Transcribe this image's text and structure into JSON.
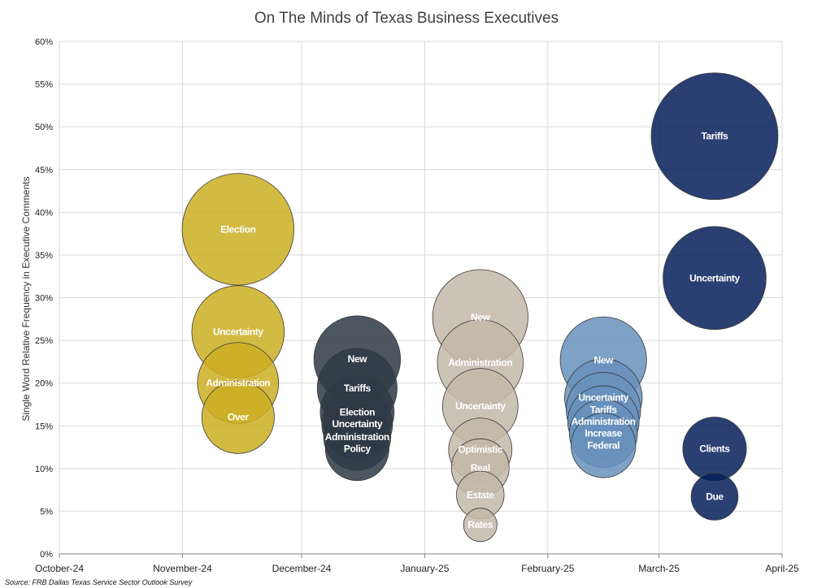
{
  "chart_data": {
    "type": "bubble",
    "title": "On The Minds of Texas Business Executives",
    "ylabel": "Single Word Relative Frequency in Executive Comments",
    "xlabel": "",
    "x_tick_labels": [
      "October-24",
      "November-24",
      "December-24",
      "January-25",
      "February-25",
      "March-25",
      "April-25"
    ],
    "x_range": [
      "2024-10-01",
      "2025-04-01"
    ],
    "ylim": [
      0,
      60
    ],
    "y_tick_values": [
      0,
      5,
      10,
      15,
      20,
      25,
      30,
      35,
      40,
      45,
      50,
      55,
      60
    ],
    "y_tick_suffix": "%",
    "grid": true,
    "legend": "none",
    "series": [
      {
        "month": "November-24",
        "x": "2024-11-15",
        "color": "#CBAE22",
        "points": [
          {
            "label": "Election",
            "y": 38,
            "size": 38
          },
          {
            "label": "Uncertainty",
            "y": 26,
            "size": 26
          },
          {
            "label": "Administration",
            "y": 20,
            "size": 20
          },
          {
            "label": "Over",
            "y": 16,
            "size": 16
          }
        ]
      },
      {
        "month": "December-24",
        "x": "2024-12-15",
        "color": "#2E3A46",
        "points": [
          {
            "label": "New",
            "y": 22.8,
            "size": 22.8
          },
          {
            "label": "Tariffs",
            "y": 19.4,
            "size": 19.4
          },
          {
            "label": "Election",
            "y": 16.6,
            "size": 16.6
          },
          {
            "label": "Uncertainty",
            "y": 15.2,
            "size": 15.2
          },
          {
            "label": "Administration",
            "y": 13.7,
            "size": 13.7
          },
          {
            "label": "Policy",
            "y": 12.3,
            "size": 12.3
          }
        ]
      },
      {
        "month": "January-25",
        "x": "2025-01-15",
        "color": "#C3B7A8",
        "points": [
          {
            "label": "New",
            "y": 27.7,
            "size": 27.7
          },
          {
            "label": "Administration",
            "y": 22.4,
            "size": 22.4
          },
          {
            "label": "Uncertainty",
            "y": 17.3,
            "size": 17.3
          },
          {
            "label": "Optimistic",
            "y": 12.2,
            "size": 12.2
          },
          {
            "label": "Real",
            "y": 10.1,
            "size": 10.1
          },
          {
            "label": "Estate",
            "y": 6.9,
            "size": 6.9
          },
          {
            "label": "Rates",
            "y": 3.4,
            "size": 3.4
          }
        ]
      },
      {
        "month": "February-25",
        "x": "2025-02-15",
        "color": "#6790BC",
        "points": [
          {
            "label": "New",
            "y": 22.7,
            "size": 22.7
          },
          {
            "label": "Uncertainty",
            "y": 18.3,
            "size": 18.3
          },
          {
            "label": "Tariffs",
            "y": 16.9,
            "size": 16.9
          },
          {
            "label": "Administration",
            "y": 15.5,
            "size": 15.5
          },
          {
            "label": "Increase",
            "y": 14.1,
            "size": 14.1
          },
          {
            "label": "Federal",
            "y": 12.7,
            "size": 12.7
          }
        ]
      },
      {
        "month": "March-25",
        "x": "2025-03-15",
        "color": "#051F5A",
        "points": [
          {
            "label": "Tariffs",
            "y": 48.9,
            "size": 48.9
          },
          {
            "label": "Uncertainty",
            "y": 32.3,
            "size": 32.3
          },
          {
            "label": "Clients",
            "y": 12.3,
            "size": 12.3
          },
          {
            "label": "Due",
            "y": 6.7,
            "size": 6.7
          }
        ]
      }
    ]
  },
  "source_note": "Source: FRB Dallas Texas Service Sector Outlook Survey"
}
